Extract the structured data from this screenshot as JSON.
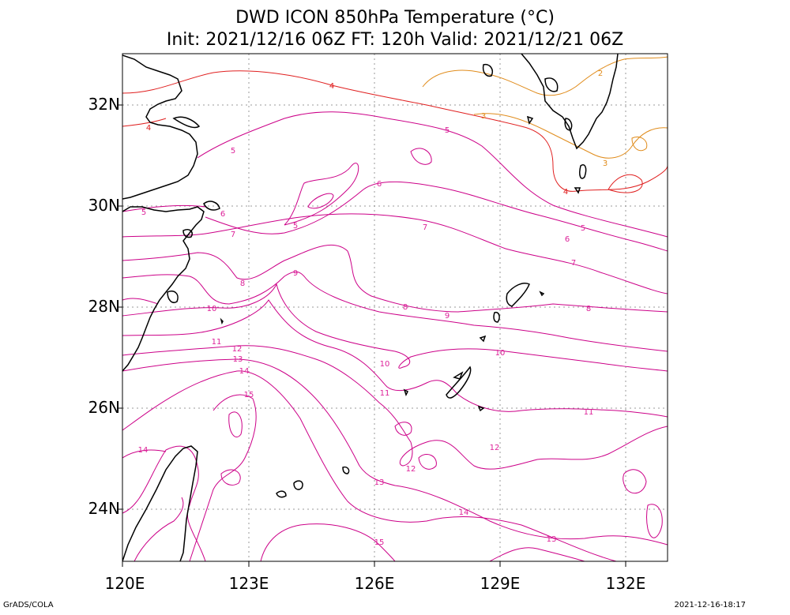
{
  "title": {
    "line1": "DWD ICON 850hPa Temperature (°C)",
    "line2": "Init: 2021/12/16 06Z  FT: 120h  Valid: 2021/12/21 06Z"
  },
  "axes": {
    "lat_labels": [
      "32N",
      "30N",
      "28N",
      "26N",
      "24N"
    ],
    "lon_labels": [
      "120E",
      "123E",
      "126E",
      "129E",
      "132E"
    ]
  },
  "footer": {
    "credit": "GrADS/COLA",
    "timestamp": "2021-12-16-18:17"
  },
  "colors": {
    "coast": "#000000",
    "grid": "#999999",
    "orange": "#e08c1c",
    "red": "#e02020",
    "magenta": "#cc0088",
    "magenta_label": "#dd2299"
  },
  "contour_labels": [
    "2",
    "3",
    "4",
    "5",
    "6",
    "7",
    "8",
    "9",
    "10",
    "11",
    "12",
    "13",
    "14",
    "15"
  ]
}
